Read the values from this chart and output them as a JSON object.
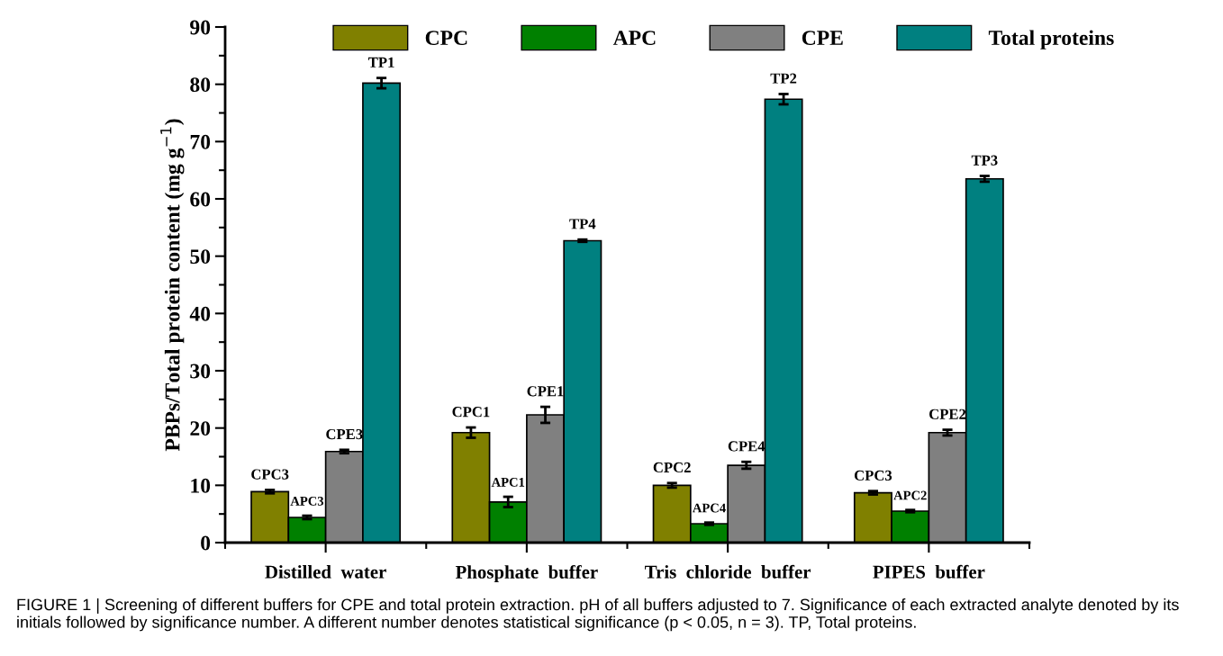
{
  "chart_data": {
    "type": "bar",
    "ylabel": "PBPs/Total protein content (mg g$^{−1}$)",
    "categories": [
      "Distilled  water",
      "Phosphate  buffer",
      "Tris  chloride  buffer",
      "PIPES  buffer"
    ],
    "series": [
      {
        "name": "CPC",
        "color": "#808000",
        "values": [
          8.9,
          19.2,
          10.0,
          8.7
        ],
        "errors": [
          0.3,
          0.9,
          0.4,
          0.3
        ],
        "value_labels": [
          "CPC3",
          "CPC1",
          "CPC2",
          "CPC3"
        ]
      },
      {
        "name": "APC",
        "color": "#008000",
        "values": [
          4.4,
          7.1,
          3.3,
          5.5
        ],
        "errors": [
          0.3,
          0.9,
          0.2,
          0.2
        ],
        "value_labels": [
          "APC3",
          "APC1",
          "APC4",
          "APC2"
        ]
      },
      {
        "name": "CPE",
        "color": "#808080",
        "values": [
          15.9,
          22.3,
          13.5,
          19.2
        ],
        "errors": [
          0.3,
          1.4,
          0.6,
          0.5
        ],
        "value_labels": [
          "CPE3",
          "CPE1",
          "CPE4",
          "CPE2"
        ]
      },
      {
        "name": "Total proteins",
        "color": "#008080",
        "values": [
          80.2,
          52.7,
          77.4,
          63.5
        ],
        "errors": [
          0.9,
          0.2,
          0.9,
          0.5
        ],
        "value_labels": [
          "TP1",
          "TP4",
          "TP2",
          "TP3"
        ]
      }
    ],
    "ylim": [
      0,
      90
    ],
    "yticks": [
      0,
      10,
      20,
      30,
      40,
      50,
      60,
      70,
      80,
      90
    ],
    "grid": false,
    "legend": "top",
    "annotations": [
      "FIGURE 1 | Screening of different buffers for CPE and total protein extraction. pH of all buffers adjusted to 7. Significance of each extracted analyte denoted by its initials followed by significance number. A different number denotes statistical significance (p < 0.05, n = 3). TP, Total proteins."
    ]
  }
}
